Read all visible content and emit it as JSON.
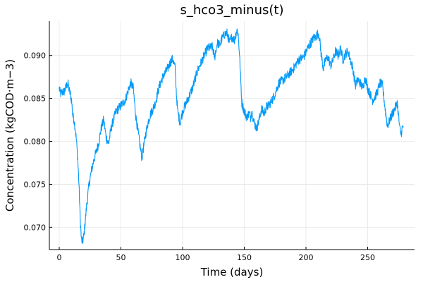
{
  "chart_data": {
    "type": "line",
    "title": "s_hco3_minus(t)",
    "xlabel": "Time (days)",
    "ylabel": "Concentration (kgCOD·m−3)",
    "xlim": [
      -8,
      288
    ],
    "ylim": [
      0.0674,
      0.094
    ],
    "xticks": [
      0,
      50,
      100,
      150,
      200,
      250
    ],
    "xtick_labels": [
      "0",
      "50",
      "100",
      "150",
      "200",
      "250"
    ],
    "yticks": [
      0.07,
      0.075,
      0.08,
      0.085,
      0.09
    ],
    "ytick_labels": [
      "0.070",
      "0.075",
      "0.080",
      "0.085",
      "0.090"
    ],
    "grid": true,
    "legend": "none",
    "series_color": "#009af9",
    "series": [
      {
        "x": [
          0,
          1,
          2,
          4,
          6,
          7,
          8,
          9,
          10,
          11,
          12,
          13,
          14,
          15,
          16,
          17,
          18,
          19,
          20,
          21,
          22,
          24,
          26,
          28,
          30,
          32,
          34,
          36,
          38,
          40,
          42,
          44,
          46,
          48,
          50,
          52,
          54,
          56,
          58,
          60,
          62,
          64,
          66,
          67,
          68,
          70,
          72,
          74,
          76,
          78,
          80,
          82,
          84,
          86,
          88,
          90,
          92,
          94,
          95,
          96,
          97,
          98,
          100,
          104,
          108,
          112,
          116,
          120,
          124,
          126,
          128,
          130,
          132,
          134,
          136,
          138,
          140,
          142,
          144,
          145,
          146,
          147,
          148,
          150,
          152,
          154,
          155,
          156,
          158,
          160,
          162,
          164,
          166,
          168,
          170,
          174,
          178,
          182,
          186,
          190,
          194,
          198,
          202,
          206,
          208,
          210,
          211,
          212,
          214,
          216,
          218,
          220,
          222,
          224,
          226,
          228,
          230,
          232,
          234,
          236,
          238,
          240,
          242,
          244,
          246,
          248,
          250,
          252,
          254,
          256,
          258,
          260,
          262,
          264,
          266,
          268,
          270,
          272,
          274,
          276,
          277,
          278,
          279
        ],
        "y": [
          0.0862,
          0.0855,
          0.0857,
          0.0858,
          0.0865,
          0.0868,
          0.086,
          0.0855,
          0.0848,
          0.083,
          0.0825,
          0.0815,
          0.08,
          0.078,
          0.075,
          0.071,
          0.0685,
          0.0683,
          0.069,
          0.0705,
          0.0722,
          0.0748,
          0.0765,
          0.0778,
          0.0788,
          0.0798,
          0.0815,
          0.0825,
          0.0805,
          0.0797,
          0.0815,
          0.0825,
          0.0835,
          0.0838,
          0.0842,
          0.0845,
          0.085,
          0.086,
          0.0868,
          0.0862,
          0.083,
          0.081,
          0.079,
          0.0781,
          0.079,
          0.0808,
          0.0822,
          0.0832,
          0.0838,
          0.0845,
          0.0858,
          0.0868,
          0.0875,
          0.088,
          0.0885,
          0.0892,
          0.0896,
          0.0885,
          0.0855,
          0.0835,
          0.0828,
          0.0822,
          0.0835,
          0.0848,
          0.0862,
          0.0882,
          0.0895,
          0.0908,
          0.091,
          0.0898,
          0.0915,
          0.0912,
          0.092,
          0.0925,
          0.0926,
          0.0915,
          0.0922,
          0.0918,
          0.093,
          0.0925,
          0.0905,
          0.0875,
          0.0845,
          0.0835,
          0.0828,
          0.0833,
          0.0828,
          0.0835,
          0.0822,
          0.0815,
          0.0825,
          0.0838,
          0.0832,
          0.084,
          0.0842,
          0.0852,
          0.0868,
          0.0872,
          0.0878,
          0.0885,
          0.0895,
          0.0898,
          0.091,
          0.092,
          0.0922,
          0.0926,
          0.0921,
          0.0905,
          0.0885,
          0.0895,
          0.0898,
          0.0888,
          0.0895,
          0.0905,
          0.09,
          0.0908,
          0.0895,
          0.0902,
          0.0905,
          0.0895,
          0.0885,
          0.0865,
          0.0872,
          0.0868,
          0.0862,
          0.0875,
          0.0862,
          0.0855,
          0.0848,
          0.0852,
          0.0858,
          0.0868,
          0.0865,
          0.084,
          0.0818,
          0.0825,
          0.0832,
          0.0838,
          0.0845,
          0.0815,
          0.0808,
          0.0815,
          0.0817
        ]
      }
    ]
  }
}
